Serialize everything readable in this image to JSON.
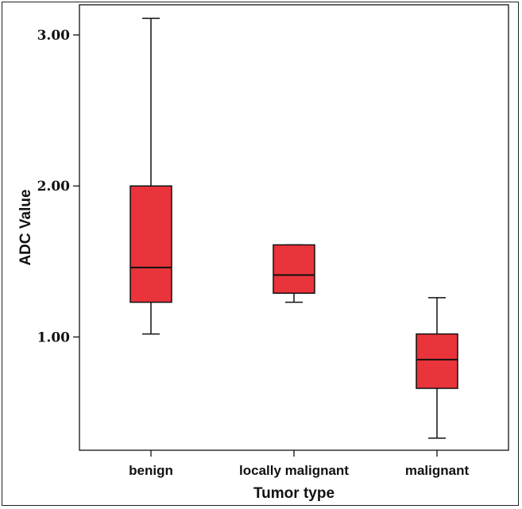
{
  "chart_data": {
    "type": "boxplot",
    "xlabel": "Tumor type",
    "ylabel": "ADC Value",
    "ylim": [
      0.25,
      3.2
    ],
    "yticks": [
      1.0,
      2.0,
      3.0
    ],
    "ytick_labels": [
      "1.00",
      "2.00",
      "3.00"
    ],
    "categories": [
      "benign",
      "locally malignant",
      "malignant"
    ],
    "boxes": [
      {
        "category": "benign",
        "min": 1.02,
        "q1": 1.23,
        "median": 1.46,
        "q3": 2.0,
        "max": 3.11
      },
      {
        "category": "locally malignant",
        "min": 1.23,
        "q1": 1.29,
        "median": 1.41,
        "q3": 1.61,
        "max": 1.61
      },
      {
        "category": "malignant",
        "min": 0.33,
        "q1": 0.66,
        "median": 0.85,
        "q3": 1.02,
        "max": 1.26
      }
    ],
    "box_color": "#e8343a",
    "grid": false
  }
}
